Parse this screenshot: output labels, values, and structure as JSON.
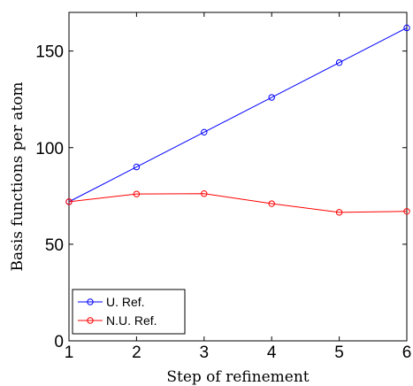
{
  "chart_data": {
    "type": "line",
    "x": [
      1,
      2,
      3,
      4,
      5,
      6
    ],
    "series": [
      {
        "name": "U. Ref.",
        "values": [
          72,
          90,
          108,
          126,
          144,
          162
        ],
        "color": "#0000ff",
        "marker": "circle"
      },
      {
        "name": "N.U. Ref.",
        "values": [
          72,
          76,
          76.2,
          71,
          66.5,
          67
        ],
        "color": "#ff0000",
        "marker": "circle"
      }
    ],
    "title": "",
    "xlabel": "Step of refinement",
    "ylabel": "Basis functions per atom",
    "xlim": [
      1,
      6
    ],
    "ylim": [
      0,
      170
    ],
    "xticks": [
      1,
      2,
      3,
      4,
      5,
      6
    ],
    "yticks": [
      0,
      50,
      100,
      150
    ],
    "grid": false,
    "legend_position": "bottom-left"
  }
}
